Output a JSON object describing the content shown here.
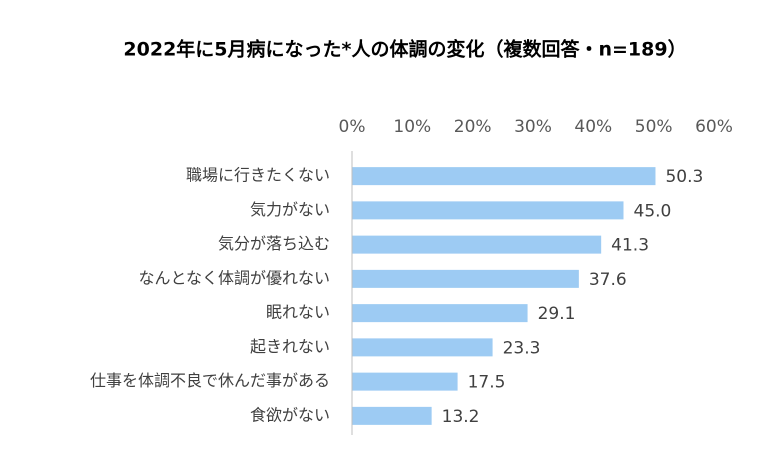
{
  "chart_data": {
    "type": "bar",
    "orientation": "horizontal",
    "title": "2022年に5月病になった*人の体調の変化（複数回答・n=189）",
    "categories": [
      "職場に行きたくない",
      "気力がない",
      "気分が落ち込む",
      "なんとなく体調が優れない",
      "眠れない",
      "起きれない",
      "仕事を体調不良で休んだ事がある",
      "食欲がない"
    ],
    "values": [
      50.3,
      45.0,
      41.3,
      37.6,
      29.1,
      23.3,
      17.5,
      13.2
    ],
    "value_labels": [
      "50.3",
      "45.0",
      "41.3",
      "37.6",
      "29.1",
      "23.3",
      "17.5",
      "13.2"
    ],
    "color": "#9dcbf3",
    "xlim": [
      0,
      60
    ],
    "xticks": [
      {
        "value": 0,
        "label": "0%"
      },
      {
        "value": 10,
        "label": "10%"
      },
      {
        "value": 20,
        "label": "20%"
      },
      {
        "value": 30,
        "label": "30%"
      },
      {
        "value": 40,
        "label": "40%"
      },
      {
        "value": 50,
        "label": "50%"
      },
      {
        "value": 60,
        "label": "60%"
      }
    ],
    "grid": false
  }
}
